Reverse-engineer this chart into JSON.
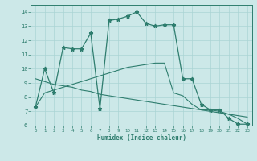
{
  "xlabel": "Humidex (Indice chaleur)",
  "x_values": [
    0,
    1,
    2,
    3,
    4,
    5,
    6,
    7,
    8,
    9,
    10,
    11,
    12,
    13,
    14,
    15,
    16,
    17,
    18,
    19,
    20,
    21,
    22,
    23
  ],
  "main_y": [
    7.3,
    10.0,
    8.3,
    11.5,
    11.4,
    11.4,
    12.5,
    7.2,
    13.4,
    13.5,
    13.7,
    14.0,
    13.2,
    13.0,
    13.1,
    13.1,
    9.3,
    9.3,
    7.5,
    7.1,
    7.1,
    6.5,
    6.1,
    6.1
  ],
  "line2_y": [
    7.3,
    8.3,
    8.5,
    8.7,
    8.9,
    9.1,
    9.3,
    9.5,
    9.7,
    9.9,
    10.1,
    10.2,
    10.3,
    10.4,
    10.4,
    8.3,
    8.1,
    7.5,
    7.1,
    7.1,
    7.0,
    6.8,
    6.5,
    6.1
  ],
  "line3_y": [
    9.3,
    9.1,
    8.9,
    8.8,
    8.7,
    8.5,
    8.4,
    8.2,
    8.1,
    8.0,
    7.9,
    7.8,
    7.7,
    7.6,
    7.5,
    7.4,
    7.3,
    7.2,
    7.1,
    7.0,
    6.9,
    6.8,
    6.7,
    6.6
  ],
  "ylim": [
    6,
    14.5
  ],
  "xlim": [
    -0.5,
    23.5
  ],
  "yticks": [
    6,
    7,
    8,
    9,
    10,
    11,
    12,
    13,
    14
  ],
  "xticks": [
    0,
    1,
    2,
    3,
    4,
    5,
    6,
    7,
    8,
    9,
    10,
    11,
    12,
    13,
    14,
    15,
    16,
    17,
    18,
    19,
    20,
    21,
    22,
    23
  ],
  "line_color": "#2e7d6e",
  "bg_color": "#cce8e8",
  "grid_color": "#aad4d4"
}
